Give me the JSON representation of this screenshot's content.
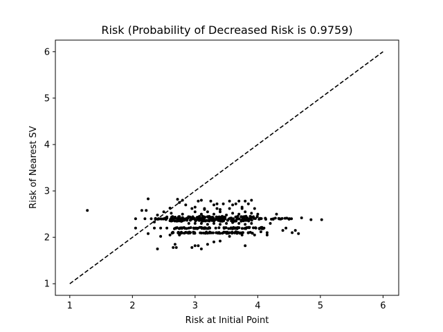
{
  "chart_data": {
    "type": "scatter",
    "title": "Risk (Probability of Decreased Risk is 0.9759)",
    "xlabel": "Risk at Initial Point",
    "ylabel": "Risk of Nearest SV",
    "xlim": [
      0.77,
      6.25
    ],
    "ylim": [
      0.75,
      6.25
    ],
    "xticks": [
      1,
      2,
      3,
      4,
      5,
      6
    ],
    "yticks": [
      1,
      2,
      3,
      4,
      5,
      6
    ],
    "grid": false,
    "point_color": "#000000",
    "reference_line": {
      "style": "dashed",
      "color": "#000000",
      "from": [
        1,
        1
      ],
      "to": [
        6,
        6
      ]
    },
    "points": [
      [
        1.28,
        2.58
      ],
      [
        2.05,
        2.4
      ],
      [
        2.05,
        2.2
      ],
      [
        2.15,
        2.58
      ],
      [
        2.25,
        2.83
      ],
      [
        2.22,
        2.58
      ],
      [
        2.2,
        2.4
      ],
      [
        2.25,
        2.08
      ],
      [
        2.3,
        2.4
      ],
      [
        2.35,
        2.2
      ],
      [
        2.4,
        1.75
      ],
      [
        2.45,
        2.02
      ],
      [
        2.45,
        2.2
      ],
      [
        2.4,
        2.48
      ],
      [
        2.35,
        2.33
      ],
      [
        2.5,
        2.55
      ],
      [
        2.5,
        2.4
      ],
      [
        2.55,
        2.2
      ],
      [
        2.6,
        2.05
      ],
      [
        2.65,
        1.78
      ],
      [
        2.68,
        1.85
      ],
      [
        2.7,
        1.78
      ],
      [
        2.72,
        2.82
      ],
      [
        2.75,
        2.75
      ],
      [
        2.8,
        2.8
      ],
      [
        2.85,
        2.7
      ],
      [
        2.6,
        2.63
      ],
      [
        2.62,
        2.52
      ],
      [
        2.65,
        2.1
      ],
      [
        2.7,
        2.2
      ],
      [
        2.75,
        2.05
      ],
      [
        2.8,
        2.5
      ],
      [
        2.85,
        2.1
      ],
      [
        2.9,
        2.2
      ],
      [
        2.95,
        1.78
      ],
      [
        3.0,
        1.82
      ],
      [
        3.05,
        1.82
      ],
      [
        3.1,
        1.75
      ],
      [
        3.2,
        1.85
      ],
      [
        3.3,
        1.9
      ],
      [
        3.4,
        1.92
      ],
      [
        3.55,
        2.02
      ],
      [
        3.8,
        1.82
      ],
      [
        3.0,
        2.65
      ],
      [
        3.05,
        2.78
      ],
      [
        3.1,
        2.8
      ],
      [
        3.15,
        2.6
      ],
      [
        3.25,
        2.78
      ],
      [
        3.3,
        2.7
      ],
      [
        3.35,
        2.72
      ],
      [
        3.4,
        2.6
      ],
      [
        3.45,
        2.72
      ],
      [
        3.55,
        2.78
      ],
      [
        3.6,
        2.7
      ],
      [
        3.65,
        2.72
      ],
      [
        3.7,
        2.78
      ],
      [
        3.75,
        2.65
      ],
      [
        3.8,
        2.78
      ],
      [
        3.85,
        2.72
      ],
      [
        3.9,
        2.8
      ],
      [
        3.95,
        2.62
      ],
      [
        3.9,
        2.52
      ],
      [
        4.0,
        2.5
      ],
      [
        4.05,
        2.4
      ],
      [
        4.1,
        2.2
      ],
      [
        4.15,
        2.1
      ],
      [
        4.2,
        2.3
      ],
      [
        4.25,
        2.4
      ],
      [
        4.3,
        2.5
      ],
      [
        4.35,
        2.4
      ],
      [
        4.4,
        2.15
      ],
      [
        4.45,
        2.2
      ],
      [
        4.5,
        2.4
      ],
      [
        4.55,
        2.1
      ],
      [
        4.6,
        2.15
      ],
      [
        4.65,
        2.08
      ],
      [
        4.7,
        2.42
      ],
      [
        4.85,
        2.38
      ],
      [
        5.02,
        2.38
      ],
      [
        3.0,
        2.55
      ],
      [
        3.1,
        2.5
      ],
      [
        3.2,
        2.55
      ],
      [
        3.3,
        2.5
      ],
      [
        3.4,
        2.55
      ],
      [
        3.5,
        2.48
      ],
      [
        3.6,
        2.52
      ],
      [
        3.7,
        2.5
      ],
      [
        3.8,
        2.55
      ],
      [
        2.9,
        2.3
      ],
      [
        3.0,
        2.3
      ],
      [
        3.1,
        2.3
      ],
      [
        3.2,
        2.28
      ],
      [
        3.3,
        2.3
      ],
      [
        3.4,
        2.28
      ],
      [
        3.5,
        2.3
      ],
      [
        3.6,
        2.32
      ],
      [
        3.7,
        2.3
      ],
      [
        3.8,
        2.28
      ],
      [
        3.9,
        2.3
      ],
      [
        2.95,
        2.62
      ],
      [
        3.15,
        2.62
      ],
      [
        3.35,
        2.62
      ],
      [
        3.55,
        2.62
      ],
      [
        3.75,
        2.62
      ],
      [
        3.65,
        2.12
      ],
      [
        3.75,
        2.05
      ],
      [
        3.85,
        2.1
      ],
      [
        3.95,
        2.05
      ],
      [
        4.05,
        2.12
      ],
      [
        4.15,
        2.05
      ]
    ],
    "bands": [
      {
        "x_range": [
          2.35,
          4.6
        ],
        "y": 2.4,
        "count": 110
      },
      {
        "x_range": [
          2.55,
          4.05
        ],
        "y": 2.44,
        "count": 60
      },
      {
        "x_range": [
          2.6,
          3.95
        ],
        "y": 2.36,
        "count": 60
      },
      {
        "x_range": [
          2.65,
          4.1
        ],
        "y": 2.2,
        "count": 70
      },
      {
        "x_range": [
          2.6,
          3.95
        ],
        "y": 2.1,
        "count": 70
      }
    ]
  }
}
